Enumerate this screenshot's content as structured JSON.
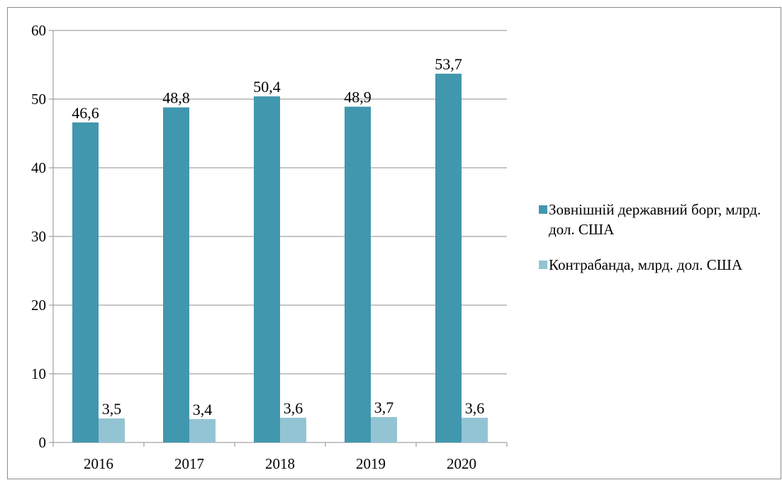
{
  "chart_data": {
    "type": "bar",
    "categories": [
      "2016",
      "2017",
      "2018",
      "2019",
      "2020"
    ],
    "series": [
      {
        "name": "Зовнішній державний борг, млрд. дол. США",
        "values": [
          46.6,
          48.8,
          50.4,
          48.9,
          53.7
        ],
        "labels": [
          "46,6",
          "48,8",
          "50,4",
          "48,9",
          "53,7"
        ],
        "color": "#4197AE"
      },
      {
        "name": "Контрабанда, млрд. дол. США",
        "values": [
          3.5,
          3.4,
          3.6,
          3.7,
          3.6
        ],
        "labels": [
          "3,5",
          "3,4",
          "3,6",
          "3,7",
          "3,6"
        ],
        "color": "#93C4D4"
      }
    ],
    "yticks": [
      "0",
      "10",
      "20",
      "30",
      "40",
      "50",
      "60"
    ],
    "ylim": [
      0,
      60
    ],
    "grid": true,
    "legend_position": "right",
    "title": "",
    "xlabel": "",
    "ylabel": ""
  }
}
